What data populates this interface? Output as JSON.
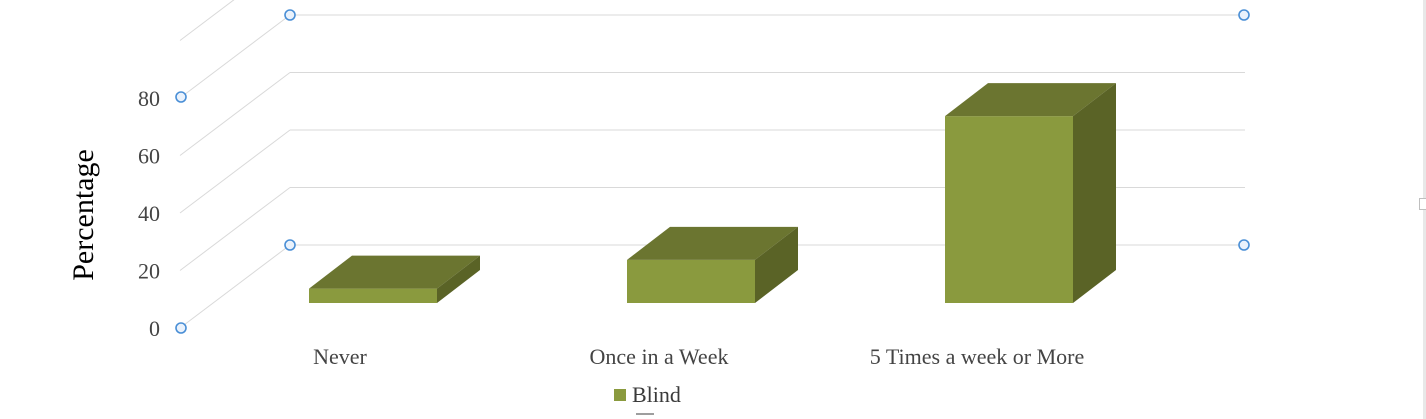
{
  "chart_data": {
    "type": "bar",
    "title": "",
    "xlabel": "",
    "ylabel": "Percentage",
    "categories": [
      "Never",
      "Once in a Week",
      "5 Times a week or More"
    ],
    "series": [
      {
        "name": "Blind",
        "values": [
          5,
          15,
          65
        ],
        "color": "#8a9a3e"
      }
    ],
    "yticks": [
      "0",
      "20",
      "40",
      "60",
      "80"
    ],
    "ylim": [
      0,
      100
    ],
    "grid": true,
    "legend": "bottom",
    "style": "3d-column",
    "colors": {
      "front": "#8a9a3e",
      "top": "#6b7530",
      "side": "#5a6326",
      "grid": "#d9d9d9",
      "handle": "#4a8fd6"
    }
  }
}
